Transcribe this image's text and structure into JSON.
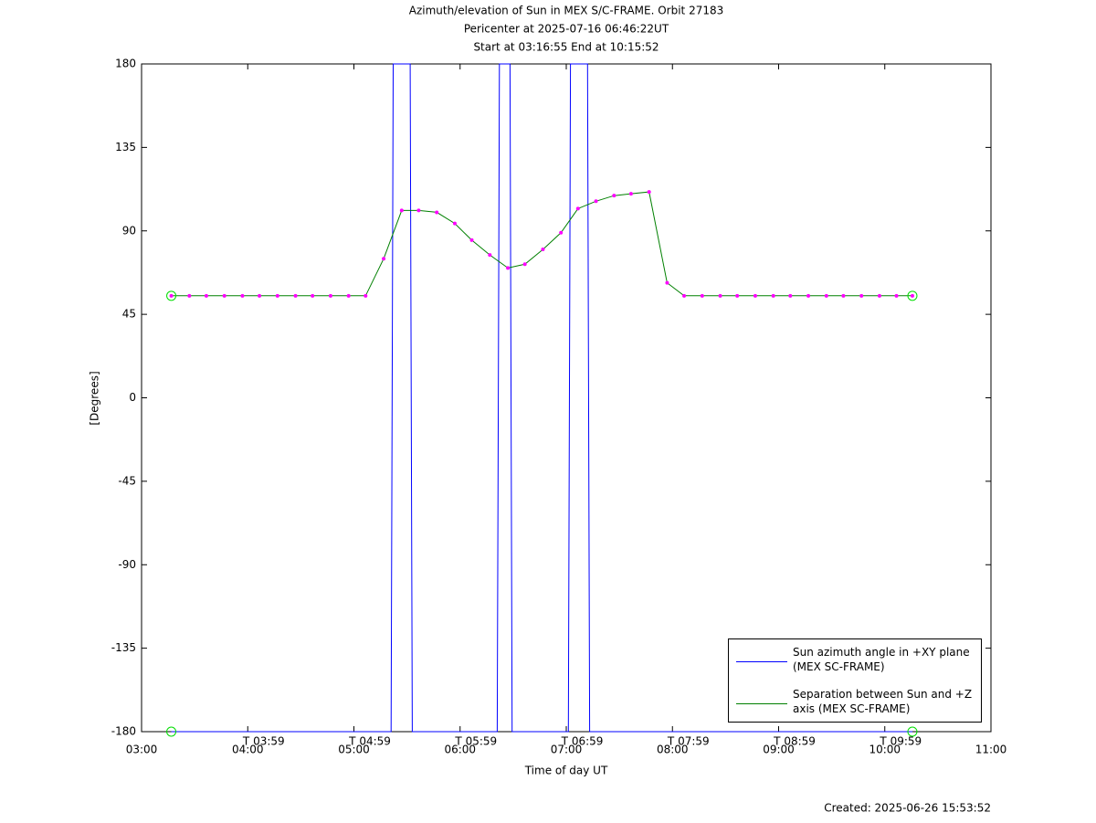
{
  "chart_data": {
    "type": "line",
    "title": "Azimuth/elevation of Sun in MEX S/C-FRAME.  Orbit 27183",
    "subtitle": [
      "Pericenter at 2025-07-16 06:46:22UT",
      "Start at 03:16:55 End at 10:15:52"
    ],
    "xlabel": "Time of day UT",
    "ylabel": "[Degrees]",
    "footer": "Created: 2025-06-26 15:53:52",
    "xlim": [
      3,
      11
    ],
    "xticks": [
      {
        "value": 3,
        "label": "03:00"
      },
      {
        "value": 4,
        "label": "04:00"
      },
      {
        "value": 5,
        "label": "05:00"
      },
      {
        "value": 6,
        "label": "06:00"
      },
      {
        "value": 7,
        "label": "07:00"
      },
      {
        "value": 8,
        "label": "08:00"
      },
      {
        "value": 9,
        "label": "09:00"
      },
      {
        "value": 10,
        "label": "10:00"
      },
      {
        "value": 11,
        "label": "11:00"
      }
    ],
    "ylim": [
      -180,
      180
    ],
    "yticks": [
      -180,
      -135,
      -90,
      -45,
      0,
      45,
      90,
      135,
      180
    ],
    "time_marks": [
      {
        "value": 3.98,
        "label": "T 03:59"
      },
      {
        "value": 4.98,
        "label": "T 04:59"
      },
      {
        "value": 5.98,
        "label": "T 05:59"
      },
      {
        "value": 6.98,
        "label": "T 06:59"
      },
      {
        "value": 7.98,
        "label": "T 07:59"
      },
      {
        "value": 8.98,
        "label": "T 08:59"
      },
      {
        "value": 9.98,
        "label": "T 09:59"
      }
    ],
    "marker_color": "#ff00ff",
    "series": [
      {
        "name": "Sun azimuth angle in +XY plane (MEX SC-FRAME)",
        "color": "#0000ff",
        "x": [
          3.28,
          5.35,
          5.37,
          5.53,
          5.55,
          6.35,
          6.37,
          6.47,
          6.49,
          7.02,
          7.04,
          7.2,
          7.22,
          10.26
        ],
        "values": [
          -180,
          -180,
          180,
          180,
          -180,
          -180,
          180,
          180,
          -180,
          -180,
          180,
          180,
          -180,
          -180
        ]
      },
      {
        "name": "Separation between Sun and +Z axis (MEX SC-FRAME)",
        "color": "#008000",
        "x": [
          3.28,
          3.45,
          3.61,
          3.78,
          3.95,
          4.11,
          4.28,
          4.45,
          4.61,
          4.78,
          4.95,
          5.11,
          5.28,
          5.45,
          5.61,
          5.78,
          5.95,
          6.11,
          6.28,
          6.45,
          6.61,
          6.78,
          6.95,
          7.11,
          7.28,
          7.45,
          7.61,
          7.78,
          7.95,
          8.11,
          8.28,
          8.45,
          8.61,
          8.78,
          8.95,
          9.11,
          9.28,
          9.45,
          9.61,
          9.78,
          9.95,
          10.11,
          10.26
        ],
        "values": [
          55,
          55,
          55,
          55,
          55,
          55,
          55,
          55,
          55,
          55,
          55,
          55,
          75,
          101,
          101,
          100,
          94,
          85,
          77,
          70,
          72,
          80,
          89,
          102,
          106,
          109,
          110,
          111,
          62,
          55,
          55,
          55,
          55,
          55,
          55,
          55,
          55,
          55,
          55,
          55,
          55,
          55,
          55
        ]
      }
    ]
  }
}
